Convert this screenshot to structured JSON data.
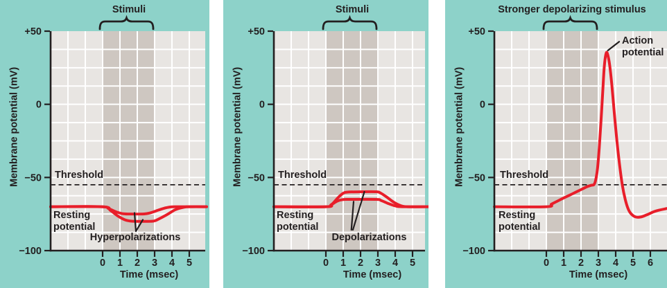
{
  "colors": {
    "panel_background": "#8dd2c9",
    "plot_background": "#e8e5e2",
    "stimulus_band": "#cec7c1",
    "gridline": "#ffffff",
    "curve_red": "#e81e2a",
    "ink": "#231f20"
  },
  "figure": {
    "threshold_label": "Threshold",
    "resting_label": "Resting\npotential",
    "xlabel": "Time (msec)",
    "ylabel": "Membrane potential (mV)"
  },
  "chart_data": [
    {
      "type": "line",
      "title": "Stimuli",
      "annotation": "Hyperpolarizations",
      "xlabel": "Time (msec)",
      "ylabel": "Membrane potential (mV)",
      "xlim": [
        -3,
        6
      ],
      "ylim": [
        -100,
        50
      ],
      "xticks": [
        0,
        1,
        2,
        3,
        4,
        5
      ],
      "yticks": [
        {
          "label": "+50",
          "value": 50
        },
        {
          "label": "0",
          "value": 0
        },
        {
          "label": "−50",
          "value": -50
        },
        {
          "label": "−100",
          "value": -100
        }
      ],
      "grid": {
        "x_step_msec": 1,
        "y_step_mV": 12.5
      },
      "stimulus_window_msec": [
        0,
        3
      ],
      "threshold_mV": -55,
      "resting_mV": -70,
      "series": [
        {
          "name": "hyperpolarization (smaller stimulus)",
          "points": [
            [
              -3,
              -70
            ],
            [
              -0.1,
              -70
            ],
            [
              0.35,
              -71.3
            ],
            [
              0.8,
              -73.6
            ],
            [
              1.2,
              -74.8
            ],
            [
              1.7,
              -75
            ],
            [
              2.4,
              -74.9
            ],
            [
              2.75,
              -74.2
            ],
            [
              3.1,
              -72.8
            ],
            [
              3.5,
              -71.2
            ],
            [
              3.9,
              -70.2
            ],
            [
              4.3,
              -70
            ],
            [
              6,
              -70
            ]
          ]
        },
        {
          "name": "hyperpolarization (larger stimulus)",
          "points": [
            [
              -3,
              -70
            ],
            [
              0,
              -70
            ],
            [
              0.45,
              -72.5
            ],
            [
              0.9,
              -76.5
            ],
            [
              1.3,
              -79
            ],
            [
              1.7,
              -79.9
            ],
            [
              2.5,
              -80
            ],
            [
              2.95,
              -79.8
            ],
            [
              3.2,
              -78.6
            ],
            [
              3.7,
              -75.5
            ],
            [
              4.2,
              -72
            ],
            [
              4.7,
              -70.3
            ],
            [
              5.1,
              -70
            ],
            [
              6,
              -70
            ]
          ]
        }
      ],
      "pointers": [
        [
          [
            1.84,
            -74.2
          ],
          [
            1.92,
            -86.8
          ],
          [
            2.32,
            -78.9
          ]
        ]
      ]
    },
    {
      "type": "line",
      "title": "Stimuli",
      "annotation": "Depolarizations",
      "xlabel": "Time (msec)",
      "ylabel": "Membrane potential (mV)",
      "xlim": [
        -3,
        6
      ],
      "ylim": [
        -100,
        50
      ],
      "xticks": [
        0,
        1,
        2,
        3,
        4,
        5
      ],
      "yticks": [
        {
          "label": "+50",
          "value": 50
        },
        {
          "label": "0",
          "value": 0
        },
        {
          "label": "−50",
          "value": -50
        },
        {
          "label": "−100",
          "value": -100
        }
      ],
      "grid": {
        "x_step_msec": 1,
        "y_step_mV": 12.5
      },
      "stimulus_window_msec": [
        0,
        3
      ],
      "threshold_mV": -55,
      "resting_mV": -70,
      "series": [
        {
          "name": "depolarization (larger, subthreshold)",
          "points": [
            [
              -3,
              -70
            ],
            [
              0,
              -70
            ],
            [
              0.35,
              -68.3
            ],
            [
              0.7,
              -63.8
            ],
            [
              1.0,
              -60.8
            ],
            [
              1.25,
              -60
            ],
            [
              2.0,
              -59.8
            ],
            [
              2.9,
              -59.8
            ],
            [
              3.15,
              -60.6
            ],
            [
              3.5,
              -63.3
            ],
            [
              3.9,
              -66.8
            ],
            [
              4.3,
              -69.2
            ],
            [
              4.7,
              -70
            ],
            [
              6,
              -70
            ]
          ]
        },
        {
          "name": "depolarization (smaller)",
          "points": [
            [
              -3,
              -70
            ],
            [
              0,
              -70
            ],
            [
              0.3,
              -68.7
            ],
            [
              0.65,
              -66.2
            ],
            [
              0.95,
              -65.2
            ],
            [
              1.3,
              -65
            ],
            [
              2.9,
              -65
            ],
            [
              3.2,
              -65.8
            ],
            [
              3.6,
              -67.8
            ],
            [
              4.0,
              -69.4
            ],
            [
              4.4,
              -70
            ],
            [
              6,
              -70
            ]
          ]
        }
      ],
      "pointers": [
        [
          [
            2.22,
            -59.8
          ],
          [
            1.56,
            -85.8
          ]
        ],
        [
          [
            1.6,
            -66.5
          ],
          [
            1.47,
            -85.8
          ]
        ]
      ]
    },
    {
      "type": "line",
      "title": "Stronger depolarizing stimulus",
      "annotation": "Action\npotential",
      "xlabel": "Time (msec)",
      "ylabel": "Membrane potential (mV)",
      "xlim": [
        -3,
        6.96
      ],
      "ylim": [
        -100,
        50
      ],
      "xticks": [
        0,
        1,
        2,
        3,
        4,
        5,
        6
      ],
      "yticks": [
        {
          "label": "+50",
          "value": 50
        },
        {
          "label": "0",
          "value": 0
        },
        {
          "label": "−50",
          "value": -50
        },
        {
          "label": "−100",
          "value": -100
        }
      ],
      "grid": {
        "x_step_msec": 1,
        "y_step_mV": 12.5
      },
      "stimulus_window_msec": [
        0,
        3
      ],
      "threshold_mV": -55,
      "resting_mV": -70,
      "peak_mV": 35,
      "afterhyperpolarization_mV": -77,
      "series": [
        {
          "name": "action potential",
          "points": [
            [
              -3,
              -70
            ],
            [
              0,
              -70
            ],
            [
              0.3,
              -68.2
            ],
            [
              0.7,
              -65.8
            ],
            [
              1.0,
              -64
            ],
            [
              1.5,
              -61.2
            ],
            [
              2.0,
              -58.3
            ],
            [
              2.35,
              -56.3
            ],
            [
              2.6,
              -55.3
            ],
            [
              2.75,
              -54.8
            ],
            [
              2.85,
              -51.5
            ],
            [
              2.95,
              -44
            ],
            [
              3.05,
              -30
            ],
            [
              3.15,
              -12
            ],
            [
              3.25,
              8
            ],
            [
              3.33,
              24
            ],
            [
              3.4,
              32
            ],
            [
              3.47,
              35.5
            ],
            [
              3.55,
              33.5
            ],
            [
              3.65,
              27
            ],
            [
              3.78,
              13
            ],
            [
              3.92,
              -6
            ],
            [
              4.07,
              -25
            ],
            [
              4.22,
              -41
            ],
            [
              4.38,
              -55
            ],
            [
              4.55,
              -65
            ],
            [
              4.72,
              -71.5
            ],
            [
              4.9,
              -75
            ],
            [
              5.15,
              -77
            ],
            [
              5.45,
              -77
            ],
            [
              5.8,
              -75.5
            ],
            [
              6.3,
              -73
            ],
            [
              6.96,
              -71.2
            ]
          ]
        }
      ],
      "pointers": [
        [
          [
            3.55,
            36.8
          ],
          [
            4.2,
            42.8
          ]
        ]
      ]
    }
  ]
}
